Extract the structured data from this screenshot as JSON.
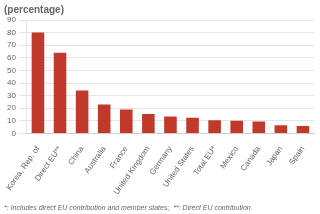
{
  "chart_data": {
    "type": "bar",
    "title": "(percentage)",
    "categories": [
      "Korea, Rep. of",
      "Direct EU**",
      "China",
      "Australia",
      "France",
      "United Kingdom",
      "Germany",
      "United States",
      "Total EU*",
      "Mexico",
      "Canada",
      "Japan",
      "Spain"
    ],
    "values": [
      80,
      64,
      34,
      23,
      19,
      15.5,
      13.5,
      12.5,
      10.5,
      10,
      9.5,
      6.5,
      6
    ],
    "color": "#c0392b",
    "ylim": [
      0,
      90
    ],
    "yticks": [
      0,
      10,
      20,
      30,
      40,
      50,
      60,
      70,
      80,
      90
    ],
    "grid": true,
    "annotations": [
      "*: Includes direct EU contribution and member states;  **: Direct EU contribution."
    ]
  }
}
